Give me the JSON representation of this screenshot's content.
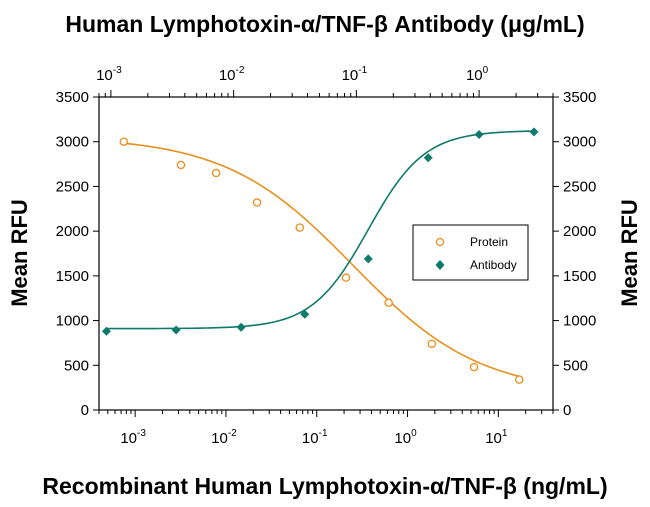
{
  "chart_data": {
    "type": "scatter",
    "title_top": "Human Lymphotoxin-α/TNF-β  Antibody (μg/mL)",
    "xlabel_bottom": "Recombinant Human Lymphotoxin-α/TNF-β (ng/mL)",
    "ylabel_left": "Mean RFU",
    "ylabel_right": "Mean RFU",
    "ylim": [
      0,
      3500
    ],
    "y_ticks": [
      0,
      500,
      1000,
      1500,
      2000,
      2500,
      3000,
      3500
    ],
    "x_bottom": {
      "scale": "log",
      "range": [
        0.0004,
        40
      ],
      "ticks": [
        0.001,
        0.01,
        0.1,
        1,
        10
      ],
      "tick_labels": [
        {
          "base": "10",
          "exp": "-3"
        },
        {
          "base": "10",
          "exp": "-2"
        },
        {
          "base": "10",
          "exp": "-1"
        },
        {
          "base": "10",
          "exp": "0"
        },
        {
          "base": "10",
          "exp": "1"
        }
      ]
    },
    "x_top": {
      "scale": "log",
      "range": [
        0.0008,
        4
      ],
      "ticks": [
        0.001,
        0.01,
        0.1,
        1
      ],
      "tick_labels": [
        {
          "base": "10",
          "exp": "-3"
        },
        {
          "base": "10",
          "exp": "-2"
        },
        {
          "base": "10",
          "exp": "-1"
        },
        {
          "base": "10",
          "exp": "0"
        }
      ]
    },
    "legend_placement": "center-right",
    "series": [
      {
        "name": "Protein",
        "axis": "bottom",
        "marker": "open-circle",
        "color": "#E8901C",
        "x": [
          0.00075,
          0.0032,
          0.0078,
          0.022,
          0.065,
          0.21,
          0.62,
          1.85,
          5.4,
          17
        ],
        "y": [
          3000,
          2740,
          2650,
          2320,
          2040,
          1480,
          1200,
          740,
          480,
          340
        ],
        "fit": {
          "top": 3060,
          "bottom": 180,
          "ec50": 0.25,
          "hill": 0.62
        }
      },
      {
        "name": "Antibody",
        "axis": "top",
        "marker": "filled-diamond",
        "color": "#0E7A6B",
        "x": [
          0.00092,
          0.0034,
          0.0115,
          0.038,
          0.125,
          0.385,
          1.0,
          2.8
        ],
        "y": [
          880,
          895,
          925,
          1070,
          1690,
          2820,
          3080,
          3110
        ],
        "fit": {
          "top": 3125,
          "bottom": 910,
          "ec50": 0.125,
          "hill": 1.9
        }
      }
    ]
  },
  "colors": {
    "protein": "#E8901C",
    "antibody": "#0E7A6B",
    "axis": "#000000"
  }
}
